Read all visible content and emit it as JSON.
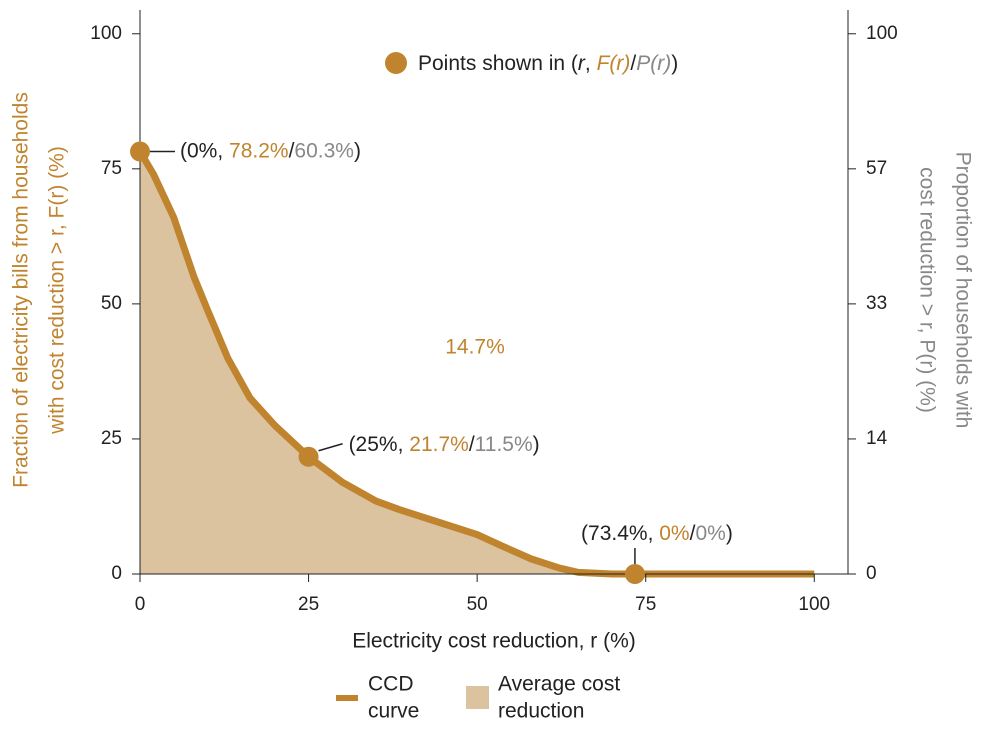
{
  "chart_data": {
    "type": "area-line",
    "x_label": "Electricity cost reduction, r (%)",
    "y_label": [
      "Fraction of electricity bills from households",
      "with cost reduction > r, F(r) (%)"
    ],
    "y2_label": [
      "Proportion of households with",
      "cost reduction > r, P(r) (%)"
    ],
    "xlim": [
      0,
      105
    ],
    "xticks": [
      0,
      25,
      50,
      75,
      100
    ],
    "ylim": [
      0,
      104.4
    ],
    "yticks": [
      0,
      25,
      50,
      75,
      100
    ],
    "y2lim": [
      0,
      104.4
    ],
    "y2ticks": [
      0,
      {
        "value": 25,
        "label": "14"
      },
      {
        "value": 50,
        "label": "33"
      },
      {
        "value": 75,
        "label": "57"
      },
      100
    ],
    "x": [
      0,
      2,
      5,
      8,
      10,
      13,
      16.3,
      20,
      25,
      30,
      35,
      38.5,
      45,
      50,
      53.3,
      58,
      62.2,
      65,
      70,
      73.4,
      80,
      90,
      100
    ],
    "series": [
      {
        "color": "#c0842e",
        "area_color": "#dcc3a0",
        "values": [
          78.2,
          74,
          66,
          55,
          48.9,
          40,
          32.6,
          27.5,
          21.7,
          17,
          13.5,
          11.9,
          9.3,
          7.3,
          5.4,
          2.8,
          1.1,
          0.3,
          0,
          0,
          0,
          0,
          0
        ]
      }
    ],
    "area_label": {
      "value": 14.7,
      "label": "14.7%"
    },
    "points": [
      {
        "r": 0,
        "F": 78.2,
        "label": [
          "(0%, ",
          "78.2%",
          "/",
          "60.3%",
          ")"
        ]
      },
      {
        "r": 25,
        "F": 21.7,
        "label": [
          "(25%, ",
          "21.7%",
          "/",
          "11.5%",
          ")"
        ]
      },
      {
        "r": 73.4,
        "F": 0,
        "label": [
          "(73.4%, ",
          "0%",
          "/",
          "0%",
          ")"
        ]
      }
    ],
    "points_legend": [
      {
        "text": "Points shown in ("
      },
      {
        "text": "r",
        "italic": true
      },
      {
        "text": ", "
      },
      {
        "text": "F(r)",
        "italic": true,
        "color": "#c0842e"
      },
      {
        "text": "/"
      },
      {
        "text": "P(r)",
        "italic": true,
        "color": "#888888"
      },
      {
        "text": ")"
      }
    ],
    "label_colors": [
      "#222222",
      "#c0842e",
      "#222222",
      "#888888",
      "#222222"
    ],
    "legend": [
      {
        "lines": [
          "CCD",
          "curve"
        ],
        "kind": "line"
      },
      {
        "lines": [
          "Average cost",
          "reduction"
        ],
        "kind": "area"
      }
    ]
  }
}
